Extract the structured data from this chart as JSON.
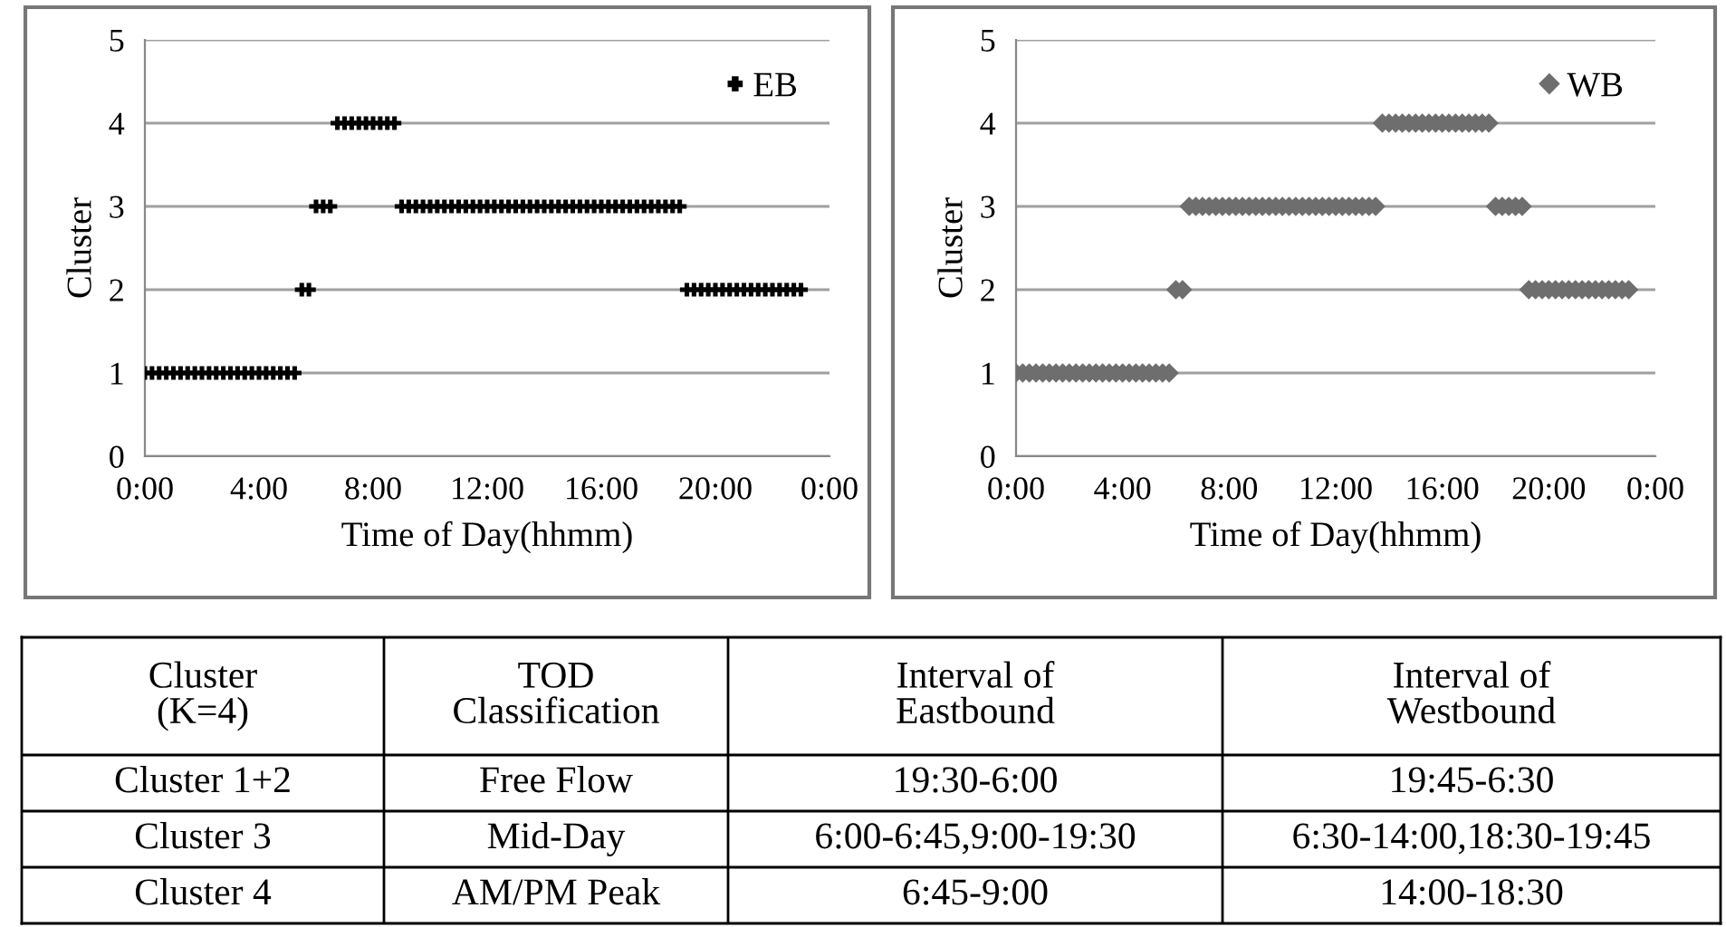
{
  "chart_data": [
    {
      "type": "scatter",
      "xlabel": "Time of Day(hhmm)",
      "ylabel": "Cluster",
      "series": [
        {
          "name": "EB",
          "color": "#000000",
          "marker": "cross",
          "x": [
            0,
            0.25,
            0.5,
            0.75,
            1,
            1.25,
            1.5,
            1.75,
            2,
            2.25,
            2.5,
            2.75,
            3,
            3.25,
            3.5,
            3.75,
            4,
            4.25,
            4.5,
            4.75,
            5,
            5.25,
            5.5,
            5.75,
            6,
            6.25,
            6.5,
            6.75,
            7,
            7.25,
            7.5,
            7.75,
            8,
            8.25,
            8.5,
            8.75,
            9,
            9.25,
            9.5,
            9.75,
            10,
            10.25,
            10.5,
            10.75,
            11,
            11.25,
            11.5,
            11.75,
            12,
            12.25,
            12.5,
            12.75,
            13,
            13.25,
            13.5,
            13.75,
            14,
            14.25,
            14.5,
            14.75,
            15,
            15.25,
            15.5,
            15.75,
            16,
            16.25,
            16.5,
            16.75,
            17,
            17.25,
            17.5,
            17.75,
            18,
            18.25,
            18.5,
            18.75,
            19,
            19.25,
            19.5,
            19.75,
            20,
            20.25,
            20.5,
            20.75,
            21,
            21.25,
            21.5,
            21.75,
            22,
            22.25,
            22.5,
            22.75,
            23
          ],
          "values": [
            1,
            1,
            1,
            1,
            1,
            1,
            1,
            1,
            1,
            1,
            1,
            1,
            1,
            1,
            1,
            1,
            1,
            1,
            1,
            1,
            1,
            1,
            2,
            2,
            3,
            3,
            3,
            4,
            4,
            4,
            4,
            4,
            4,
            4,
            4,
            4,
            3,
            3,
            3,
            3,
            3,
            3,
            3,
            3,
            3,
            3,
            3,
            3,
            3,
            3,
            3,
            3,
            3,
            3,
            3,
            3,
            3,
            3,
            3,
            3,
            3,
            3,
            3,
            3,
            3,
            3,
            3,
            3,
            3,
            3,
            3,
            3,
            3,
            3,
            3,
            3,
            2,
            2,
            2,
            2,
            2,
            2,
            2,
            2,
            2,
            2,
            2,
            2,
            2,
            2,
            2,
            2,
            2
          ]
        }
      ],
      "xlim": [
        0,
        24
      ],
      "xticks": [
        {
          "value": 0,
          "label": "0:00"
        },
        {
          "value": 4,
          "label": "4:00"
        },
        {
          "value": 8,
          "label": "8:00"
        },
        {
          "value": 12,
          "label": "12:00"
        },
        {
          "value": 16,
          "label": "16:00"
        },
        {
          "value": 20,
          "label": "20:00"
        },
        {
          "value": 24,
          "label": "0:00"
        }
      ],
      "ylim": [
        0,
        5
      ],
      "yticks": [
        0,
        1,
        2,
        3,
        4,
        5
      ],
      "grid": "y",
      "legend": "top right"
    },
    {
      "type": "scatter",
      "xlabel": "Time of Day(hhmm)",
      "ylabel": "Cluster",
      "series": [
        {
          "name": "WB",
          "color": "#6e6e6e",
          "marker": "diamond",
          "x": [
            0,
            0.25,
            0.5,
            0.75,
            1,
            1.25,
            1.5,
            1.75,
            2,
            2.25,
            2.5,
            2.75,
            3,
            3.25,
            3.5,
            3.75,
            4,
            4.25,
            4.5,
            4.75,
            5,
            5.25,
            5.5,
            5.75,
            6,
            6.25,
            6.5,
            6.75,
            7,
            7.25,
            7.5,
            7.75,
            8,
            8.25,
            8.5,
            8.75,
            9,
            9.25,
            9.5,
            9.75,
            10,
            10.25,
            10.5,
            10.75,
            11,
            11.25,
            11.5,
            11.75,
            12,
            12.25,
            12.5,
            12.75,
            13,
            13.25,
            13.5,
            13.75,
            14,
            14.25,
            14.5,
            14.75,
            15,
            15.25,
            15.5,
            15.75,
            16,
            16.25,
            16.5,
            16.75,
            17,
            17.25,
            17.5,
            17.75,
            18,
            18.25,
            18.5,
            18.75,
            19,
            19.25,
            19.5,
            19.75,
            20,
            20.25,
            20.5,
            20.75,
            21,
            21.25,
            21.5,
            21.75,
            22,
            22.25,
            22.5,
            22.75,
            23
          ],
          "values": [
            1,
            1,
            1,
            1,
            1,
            1,
            1,
            1,
            1,
            1,
            1,
            1,
            1,
            1,
            1,
            1,
            1,
            1,
            1,
            1,
            1,
            1,
            1,
            1,
            2,
            2,
            3,
            3,
            3,
            3,
            3,
            3,
            3,
            3,
            3,
            3,
            3,
            3,
            3,
            3,
            3,
            3,
            3,
            3,
            3,
            3,
            3,
            3,
            3,
            3,
            3,
            3,
            3,
            3,
            3,
            4,
            4,
            4,
            4,
            4,
            4,
            4,
            4,
            4,
            4,
            4,
            4,
            4,
            4,
            4,
            4,
            4,
            3,
            3,
            3,
            3,
            3,
            2,
            2,
            2,
            2,
            2,
            2,
            2,
            2,
            2,
            2,
            2,
            2,
            2,
            2,
            2,
            2
          ]
        }
      ],
      "xlim": [
        0,
        24
      ],
      "xticks": [
        {
          "value": 0,
          "label": "0:00"
        },
        {
          "value": 4,
          "label": "4:00"
        },
        {
          "value": 8,
          "label": "8:00"
        },
        {
          "value": 12,
          "label": "12:00"
        },
        {
          "value": 16,
          "label": "16:00"
        },
        {
          "value": 20,
          "label": "20:00"
        },
        {
          "value": 24,
          "label": "0:00"
        }
      ],
      "ylim": [
        0,
        5
      ],
      "yticks": [
        0,
        1,
        2,
        3,
        4,
        5
      ],
      "grid": "y",
      "legend": "top right"
    },
    {
      "type": "other",
      "annotations": [
        "Cluster\n(K=4)",
        "TOD\nClassification",
        "Interval of\nEastbound",
        "Interval of\nWestbound",
        "Cluster 1+2",
        "Free Flow",
        "19:30-6:00",
        "19:45-6:30",
        "Cluster 3",
        "Mid-Day",
        "6:00-6:45,9:00-19:30",
        "6:30-14:00,18:30-19:45",
        "Cluster 4",
        "AM/PM Peak",
        "6:45-9:00",
        "14:00-18:30"
      ]
    }
  ]
}
